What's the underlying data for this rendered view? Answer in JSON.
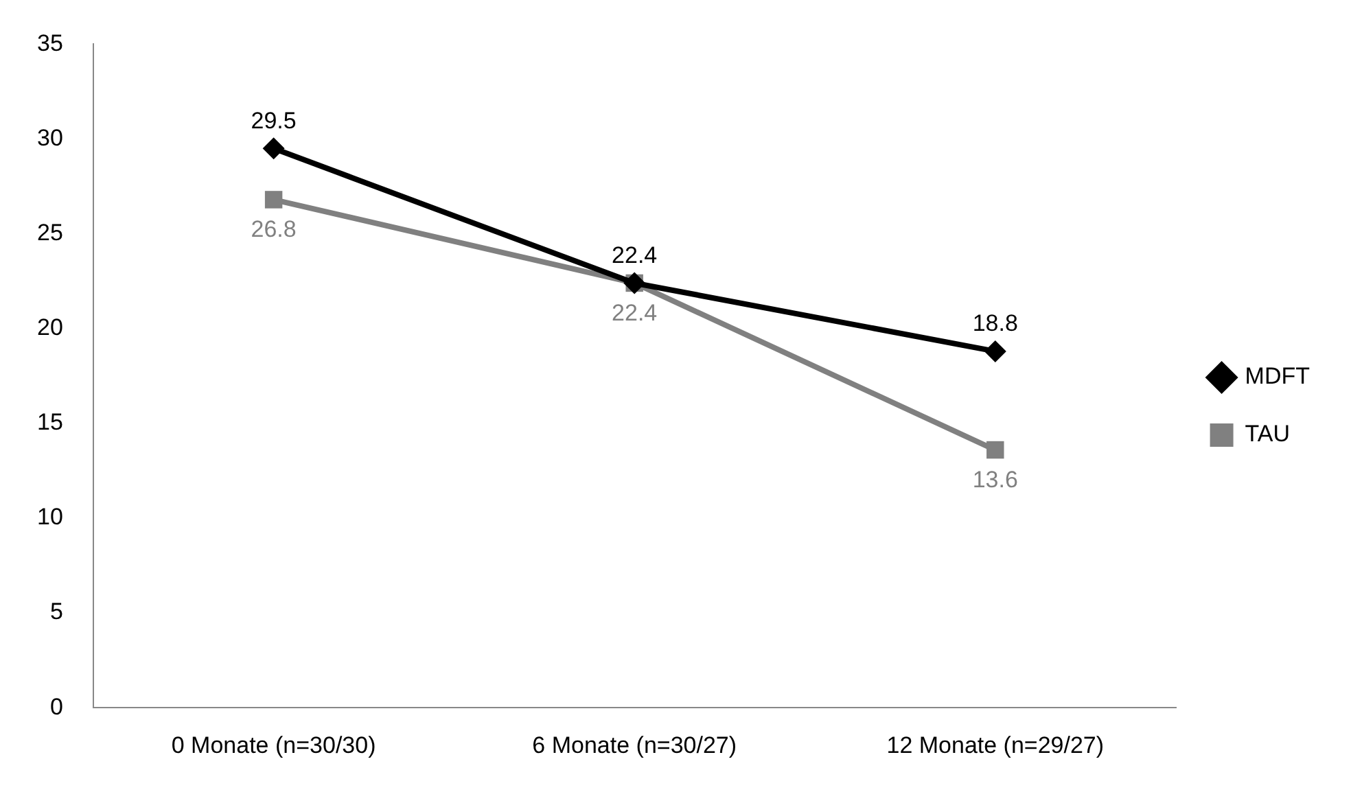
{
  "chart_data": {
    "type": "line",
    "categories": [
      "0 Monate (n=30/30)",
      "6 Monate (n=30/27)",
      "12 Monate (n=29/27)"
    ],
    "series": [
      {
        "name": "MDFT",
        "color": "#000000",
        "values": [
          29.5,
          22.4,
          18.8
        ],
        "marker": "diamond"
      },
      {
        "name": "TAU",
        "color": "#808080",
        "values": [
          26.8,
          22.4,
          13.6
        ],
        "marker": "square"
      }
    ],
    "ylim": [
      0,
      35
    ],
    "yticks": [
      0,
      5,
      10,
      15,
      20,
      25,
      30,
      35
    ],
    "grid": false,
    "legend": "right",
    "data_labels": true,
    "line_style": "solid"
  }
}
